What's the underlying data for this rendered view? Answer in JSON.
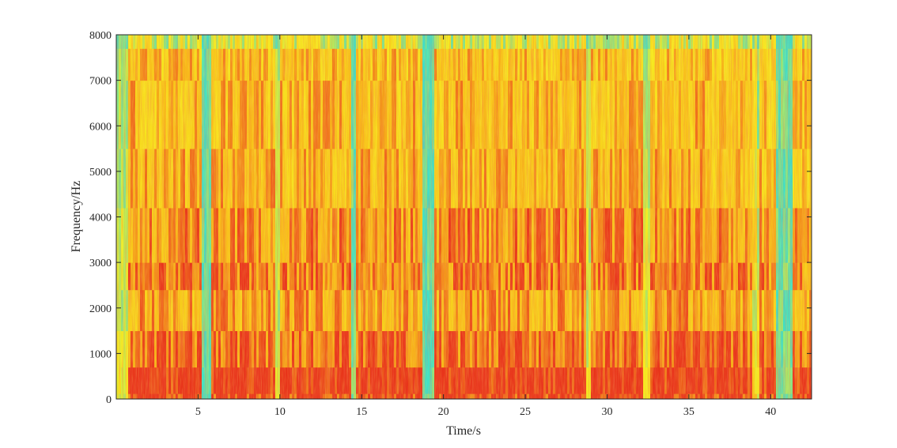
{
  "chart_data": {
    "type": "heatmap",
    "title": "",
    "xlabel": "Time/s",
    "ylabel": "Frequency/Hz",
    "xlim": [
      0,
      42.5
    ],
    "ylim": [
      0,
      8000
    ],
    "x_ticks": [
      5,
      10,
      15,
      20,
      25,
      30,
      35,
      40
    ],
    "x_tick_labels": [
      "5",
      "10",
      "15",
      "20",
      "25",
      "30",
      "35",
      "40"
    ],
    "y_ticks": [
      0,
      1000,
      2000,
      3000,
      4000,
      5000,
      6000,
      7000,
      8000
    ],
    "y_tick_labels": [
      "0",
      "1000",
      "2000",
      "3000",
      "4000",
      "5000",
      "6000",
      "7000",
      "8000"
    ],
    "grid": false,
    "colormap": [
      "#3de0c8",
      "#f6f01e",
      "#f8c018",
      "#e8341a"
    ],
    "segments": [
      {
        "start": 0.0,
        "end": 0.6,
        "level": 0.25
      },
      {
        "start": 0.6,
        "end": 5.2,
        "level": 0.85
      },
      {
        "start": 5.2,
        "end": 5.7,
        "level": 0.05
      },
      {
        "start": 5.7,
        "end": 9.6,
        "level": 0.85
      },
      {
        "start": 9.6,
        "end": 9.9,
        "level": 0.25
      },
      {
        "start": 9.9,
        "end": 14.3,
        "level": 0.85
      },
      {
        "start": 14.3,
        "end": 14.6,
        "level": 0.1
      },
      {
        "start": 14.6,
        "end": 18.7,
        "level": 0.85
      },
      {
        "start": 18.7,
        "end": 19.3,
        "level": 0.05
      },
      {
        "start": 19.3,
        "end": 28.6,
        "level": 0.85
      },
      {
        "start": 28.6,
        "end": 29.0,
        "level": 0.25
      },
      {
        "start": 29.0,
        "end": 32.2,
        "level": 0.85
      },
      {
        "start": 32.2,
        "end": 32.6,
        "level": 0.3
      },
      {
        "start": 32.6,
        "end": 38.8,
        "level": 0.85
      },
      {
        "start": 38.8,
        "end": 39.3,
        "level": 0.4
      },
      {
        "start": 39.3,
        "end": 40.3,
        "level": 0.8
      },
      {
        "start": 40.3,
        "end": 41.2,
        "level": 0.1
      },
      {
        "start": 41.2,
        "end": 42.5,
        "level": 0.8
      }
    ]
  }
}
